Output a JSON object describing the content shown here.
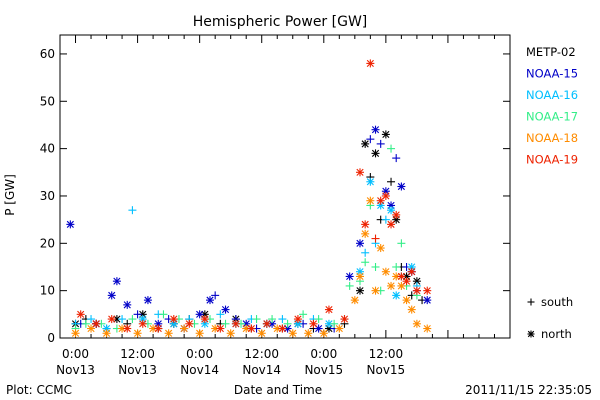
{
  "chart_data": {
    "type": "scatter",
    "title": "Hemispheric Power [GW]",
    "xlabel": "Date and Time",
    "ylabel": "P [GW]",
    "ylim": [
      0,
      64
    ],
    "y_ticks": [
      0,
      10,
      20,
      30,
      40,
      50,
      60
    ],
    "x_unit": "hours since 2011-11-13 00:00 UT",
    "xlim": [
      -3,
      84
    ],
    "x_ticks": [
      {
        "x": 0,
        "line1": "0:00",
        "line2": "Nov13"
      },
      {
        "x": 12,
        "line1": "12:00",
        "line2": "Nov13"
      },
      {
        "x": 24,
        "line1": "0:00",
        "line2": "Nov14"
      },
      {
        "x": 36,
        "line1": "12:00",
        "line2": "Nov14"
      },
      {
        "x": 48,
        "line1": "0:00",
        "line2": "Nov15"
      },
      {
        "x": 60,
        "line1": "12:00",
        "line2": "Nov15"
      }
    ],
    "legend_position": "right",
    "symbol_legend": [
      {
        "marker": "+",
        "label": "south"
      },
      {
        "marker": "*",
        "label": "north"
      }
    ],
    "grid": false,
    "footer_left": "Plot: CCMC",
    "footer_right": "2011/11/15 22:35:05",
    "series": [
      {
        "name": "METP-02",
        "color": "#000000",
        "points": [
          [
            0,
            3,
            "n"
          ],
          [
            2,
            4,
            "s"
          ],
          [
            4,
            3,
            "n"
          ],
          [
            6,
            2,
            "s"
          ],
          [
            8,
            4,
            "n"
          ],
          [
            10,
            3,
            "s"
          ],
          [
            13,
            5,
            "n"
          ],
          [
            16,
            2,
            "s"
          ],
          [
            19,
            3,
            "n"
          ],
          [
            22,
            4,
            "s"
          ],
          [
            25,
            5,
            "n"
          ],
          [
            28,
            3,
            "s"
          ],
          [
            31,
            4,
            "n"
          ],
          [
            34,
            2,
            "s"
          ],
          [
            37,
            3,
            "n"
          ],
          [
            40,
            2,
            "s"
          ],
          [
            43,
            3,
            "n"
          ],
          [
            46,
            2,
            "s"
          ],
          [
            49,
            2,
            "n"
          ],
          [
            52,
            3,
            "s"
          ],
          [
            55,
            10,
            "n"
          ],
          [
            56,
            41,
            "n"
          ],
          [
            57,
            34,
            "s"
          ],
          [
            58,
            39,
            "n"
          ],
          [
            59,
            25,
            "s"
          ],
          [
            60,
            43,
            "n"
          ],
          [
            61,
            33,
            "s"
          ],
          [
            62,
            25,
            "n"
          ],
          [
            63,
            15,
            "s"
          ],
          [
            64,
            13,
            "n"
          ],
          [
            65,
            9,
            "s"
          ],
          [
            66,
            12,
            "n"
          ],
          [
            67,
            8,
            "s"
          ]
        ]
      },
      {
        "name": "NOAA-15",
        "color": "#0000c8",
        "points": [
          [
            -1,
            24,
            "n"
          ],
          [
            1,
            3,
            "s"
          ],
          [
            4,
            3,
            "n"
          ],
          [
            7,
            9,
            "n"
          ],
          [
            8,
            12,
            "n"
          ],
          [
            10,
            7,
            "n"
          ],
          [
            12,
            5,
            "s"
          ],
          [
            14,
            8,
            "n"
          ],
          [
            16,
            3,
            "n"
          ],
          [
            18,
            4,
            "s"
          ],
          [
            21,
            2,
            "n"
          ],
          [
            24,
            5,
            "n"
          ],
          [
            26,
            8,
            "n"
          ],
          [
            27,
            9,
            "s"
          ],
          [
            29,
            6,
            "n"
          ],
          [
            31,
            4,
            "s"
          ],
          [
            33,
            3,
            "n"
          ],
          [
            35,
            2,
            "s"
          ],
          [
            38,
            3,
            "n"
          ],
          [
            41,
            2,
            "n"
          ],
          [
            44,
            3,
            "s"
          ],
          [
            47,
            2,
            "n"
          ],
          [
            50,
            2,
            "s"
          ],
          [
            53,
            13,
            "n"
          ],
          [
            55,
            20,
            "n"
          ],
          [
            57,
            42,
            "s"
          ],
          [
            58,
            44,
            "n"
          ],
          [
            59,
            41,
            "s"
          ],
          [
            60,
            31,
            "n"
          ],
          [
            61,
            28,
            "n"
          ],
          [
            62,
            38,
            "s"
          ],
          [
            63,
            32,
            "n"
          ],
          [
            64,
            15,
            "s"
          ],
          [
            65,
            14,
            "n"
          ],
          [
            66,
            10,
            "s"
          ],
          [
            68,
            8,
            "n"
          ]
        ]
      },
      {
        "name": "NOAA-16",
        "color": "#00bfff",
        "points": [
          [
            0,
            3,
            "s"
          ],
          [
            3,
            4,
            "s"
          ],
          [
            6,
            2,
            "n"
          ],
          [
            9,
            4,
            "s"
          ],
          [
            11,
            27,
            "s"
          ],
          [
            13,
            4,
            "n"
          ],
          [
            16,
            5,
            "s"
          ],
          [
            19,
            3,
            "n"
          ],
          [
            22,
            4,
            "s"
          ],
          [
            25,
            3,
            "n"
          ],
          [
            28,
            5,
            "s"
          ],
          [
            31,
            3,
            "n"
          ],
          [
            34,
            4,
            "s"
          ],
          [
            37,
            3,
            "n"
          ],
          [
            40,
            4,
            "s"
          ],
          [
            43,
            3,
            "n"
          ],
          [
            46,
            4,
            "s"
          ],
          [
            49,
            3,
            "n"
          ],
          [
            52,
            4,
            "s"
          ],
          [
            55,
            14,
            "n"
          ],
          [
            56,
            18,
            "s"
          ],
          [
            57,
            33,
            "n"
          ],
          [
            58,
            20,
            "s"
          ],
          [
            59,
            28,
            "n"
          ],
          [
            60,
            25,
            "s"
          ],
          [
            61,
            27,
            "n"
          ],
          [
            62,
            9,
            "n"
          ],
          [
            63,
            13,
            "s"
          ],
          [
            65,
            15,
            "n"
          ],
          [
            66,
            11,
            "s"
          ]
        ]
      },
      {
        "name": "NOAA-17",
        "color": "#33ee88",
        "points": [
          [
            0,
            2,
            "s"
          ],
          [
            2,
            3,
            "s"
          ],
          [
            5,
            3,
            "s"
          ],
          [
            8,
            2,
            "s"
          ],
          [
            11,
            4,
            "s"
          ],
          [
            14,
            3,
            "s"
          ],
          [
            17,
            5,
            "s"
          ],
          [
            20,
            4,
            "s"
          ],
          [
            23,
            3,
            "s"
          ],
          [
            26,
            4,
            "s"
          ],
          [
            29,
            3,
            "s"
          ],
          [
            32,
            3,
            "s"
          ],
          [
            35,
            4,
            "s"
          ],
          [
            38,
            4,
            "s"
          ],
          [
            41,
            3,
            "s"
          ],
          [
            44,
            5,
            "s"
          ],
          [
            47,
            4,
            "s"
          ],
          [
            50,
            3,
            "s"
          ],
          [
            53,
            11,
            "s"
          ],
          [
            55,
            12,
            "s"
          ],
          [
            56,
            16,
            "s"
          ],
          [
            57,
            28,
            "s"
          ],
          [
            58,
            15,
            "s"
          ],
          [
            59,
            10,
            "s"
          ],
          [
            61,
            40,
            "s"
          ],
          [
            62,
            15,
            "s"
          ],
          [
            63,
            20,
            "s"
          ],
          [
            64,
            11,
            "s"
          ],
          [
            66,
            9,
            "s"
          ]
        ]
      },
      {
        "name": "NOAA-18",
        "color": "#ff8c00",
        "points": [
          [
            0,
            1,
            "n"
          ],
          [
            3,
            2,
            "n"
          ],
          [
            6,
            1,
            "n"
          ],
          [
            9,
            2,
            "n"
          ],
          [
            12,
            1,
            "n"
          ],
          [
            15,
            2,
            "n"
          ],
          [
            18,
            1,
            "n"
          ],
          [
            21,
            2,
            "n"
          ],
          [
            24,
            1,
            "n"
          ],
          [
            27,
            2,
            "n"
          ],
          [
            30,
            1,
            "n"
          ],
          [
            33,
            2,
            "n"
          ],
          [
            36,
            1,
            "n"
          ],
          [
            39,
            2,
            "n"
          ],
          [
            42,
            1,
            "n"
          ],
          [
            45,
            1,
            "n"
          ],
          [
            48,
            1,
            "n"
          ],
          [
            51,
            2,
            "n"
          ],
          [
            54,
            8,
            "n"
          ],
          [
            55,
            13,
            "n"
          ],
          [
            56,
            22,
            "n"
          ],
          [
            57,
            29,
            "n"
          ],
          [
            58,
            10,
            "n"
          ],
          [
            59,
            19,
            "n"
          ],
          [
            60,
            14,
            "n"
          ],
          [
            61,
            11,
            "n"
          ],
          [
            62,
            13,
            "n"
          ],
          [
            63,
            11,
            "n"
          ],
          [
            64,
            8,
            "n"
          ],
          [
            65,
            6,
            "n"
          ],
          [
            66,
            3,
            "n"
          ],
          [
            68,
            2,
            "n"
          ]
        ]
      },
      {
        "name": "NOAA-19",
        "color": "#ee2200",
        "points": [
          [
            1,
            5,
            "n"
          ],
          [
            4,
            3,
            "n"
          ],
          [
            7,
            4,
            "n"
          ],
          [
            10,
            2,
            "n"
          ],
          [
            13,
            3,
            "n"
          ],
          [
            16,
            2,
            "n"
          ],
          [
            19,
            4,
            "n"
          ],
          [
            22,
            3,
            "n"
          ],
          [
            25,
            4,
            "n"
          ],
          [
            28,
            2,
            "n"
          ],
          [
            31,
            3,
            "n"
          ],
          [
            34,
            2,
            "n"
          ],
          [
            37,
            3,
            "n"
          ],
          [
            40,
            2,
            "n"
          ],
          [
            43,
            4,
            "n"
          ],
          [
            46,
            3,
            "n"
          ],
          [
            49,
            6,
            "n"
          ],
          [
            52,
            4,
            "n"
          ],
          [
            55,
            35,
            "n"
          ],
          [
            56,
            24,
            "n"
          ],
          [
            57,
            58,
            "n"
          ],
          [
            58,
            21,
            "s"
          ],
          [
            59,
            29,
            "n"
          ],
          [
            60,
            30,
            "n"
          ],
          [
            61,
            24,
            "n"
          ],
          [
            62,
            26,
            "n"
          ],
          [
            63,
            13,
            "n"
          ],
          [
            64,
            12,
            "n"
          ],
          [
            65,
            14,
            "n"
          ],
          [
            66,
            10,
            "n"
          ],
          [
            68,
            10,
            "n"
          ]
        ]
      }
    ]
  }
}
